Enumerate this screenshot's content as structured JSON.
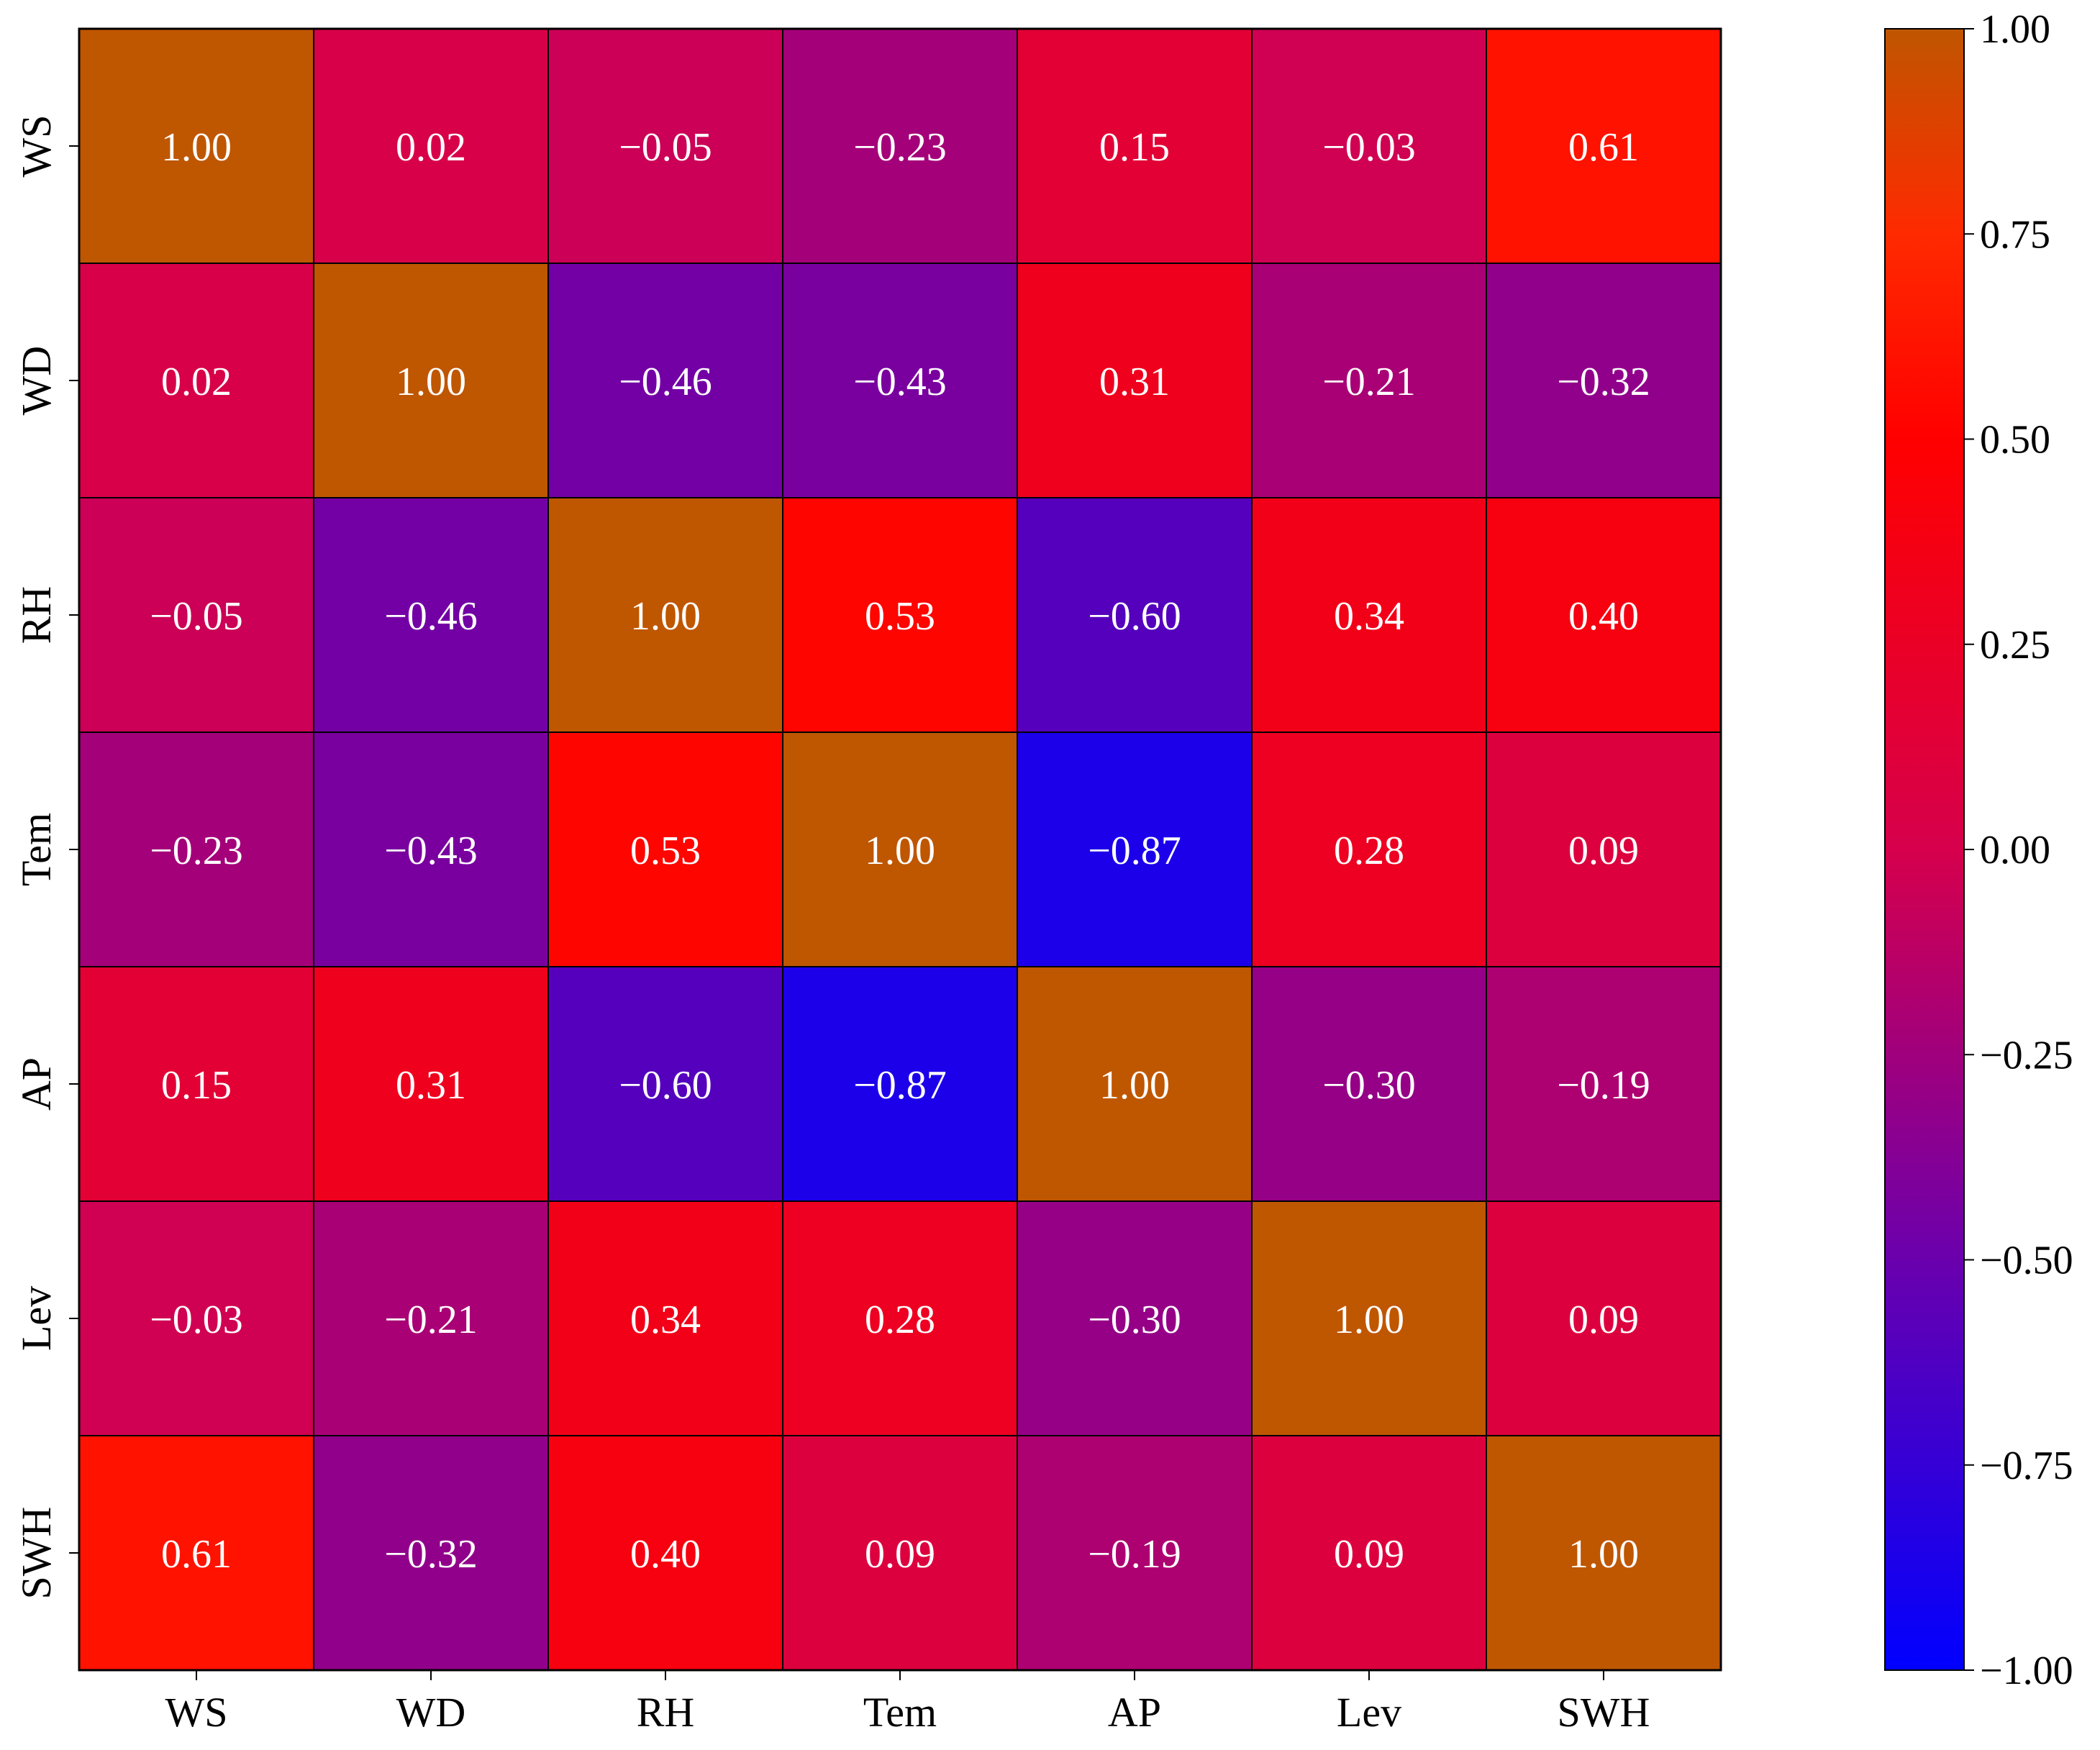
{
  "chart_data": {
    "type": "heatmap",
    "title": "",
    "xlabel": "",
    "ylabel": "",
    "x_categories": [
      "WS",
      "WD",
      "RH",
      "Tem",
      "AP",
      "Lev",
      "SWH"
    ],
    "y_categories": [
      "WS",
      "WD",
      "RH",
      "Tem",
      "AP",
      "Lev",
      "SWH"
    ],
    "values": [
      [
        1.0,
        0.02,
        -0.05,
        -0.23,
        0.15,
        -0.03,
        0.61
      ],
      [
        0.02,
        1.0,
        -0.46,
        -0.43,
        0.31,
        -0.21,
        -0.32
      ],
      [
        -0.05,
        -0.46,
        1.0,
        0.53,
        -0.6,
        0.34,
        0.4
      ],
      [
        -0.23,
        -0.43,
        0.53,
        1.0,
        -0.87,
        0.28,
        0.09
      ],
      [
        0.15,
        0.31,
        -0.6,
        -0.87,
        1.0,
        -0.3,
        -0.19
      ],
      [
        -0.03,
        -0.21,
        0.34,
        0.28,
        -0.3,
        1.0,
        0.09
      ],
      [
        0.61,
        -0.32,
        0.4,
        0.09,
        -0.19,
        0.09,
        1.0
      ]
    ],
    "cell_labels": [
      [
        "1.00",
        "0.02",
        "−0.05",
        "−0.23",
        "0.15",
        "−0.03",
        "0.61"
      ],
      [
        "0.02",
        "1.00",
        "−0.46",
        "−0.43",
        "0.31",
        "−0.21",
        "−0.32"
      ],
      [
        "−0.05",
        "−0.46",
        "1.00",
        "0.53",
        "−0.60",
        "0.34",
        "0.40"
      ],
      [
        "−0.23",
        "−0.43",
        "0.53",
        "1.00",
        "−0.87",
        "0.28",
        "0.09"
      ],
      [
        "0.15",
        "0.31",
        "−0.60",
        "−0.87",
        "1.00",
        "−0.30",
        "−0.19"
      ],
      [
        "−0.03",
        "−0.21",
        "0.34",
        "0.28",
        "−0.30",
        "1.00",
        "0.09"
      ],
      [
        "0.61",
        "−0.32",
        "0.40",
        "0.09",
        "−0.19",
        "0.09",
        "1.00"
      ]
    ],
    "value_range": [
      -1,
      1
    ],
    "colorbar": {
      "ticks": [
        1.0,
        0.75,
        0.5,
        0.25,
        0.0,
        -0.25,
        -0.5,
        -0.75,
        -1.0
      ],
      "tick_labels": [
        "1.00",
        "0.75",
        "0.50",
        "0.25",
        "0.00",
        "−0.25",
        "−0.50",
        "−0.75",
        "−1.00"
      ],
      "colormap": [
        {
          "v": -1.0,
          "color": "#0000ff"
        },
        {
          "v": -0.5,
          "color": "#6a00ad"
        },
        {
          "v": 0.0,
          "color": "#d6004c"
        },
        {
          "v": 0.5,
          "color": "#ff0000"
        },
        {
          "v": 0.75,
          "color": "#ff2a00"
        },
        {
          "v": 1.0,
          "color": "#bf5600"
        }
      ]
    },
    "cell_text_color": "#ffffff",
    "grid_line_color": "#000000"
  }
}
